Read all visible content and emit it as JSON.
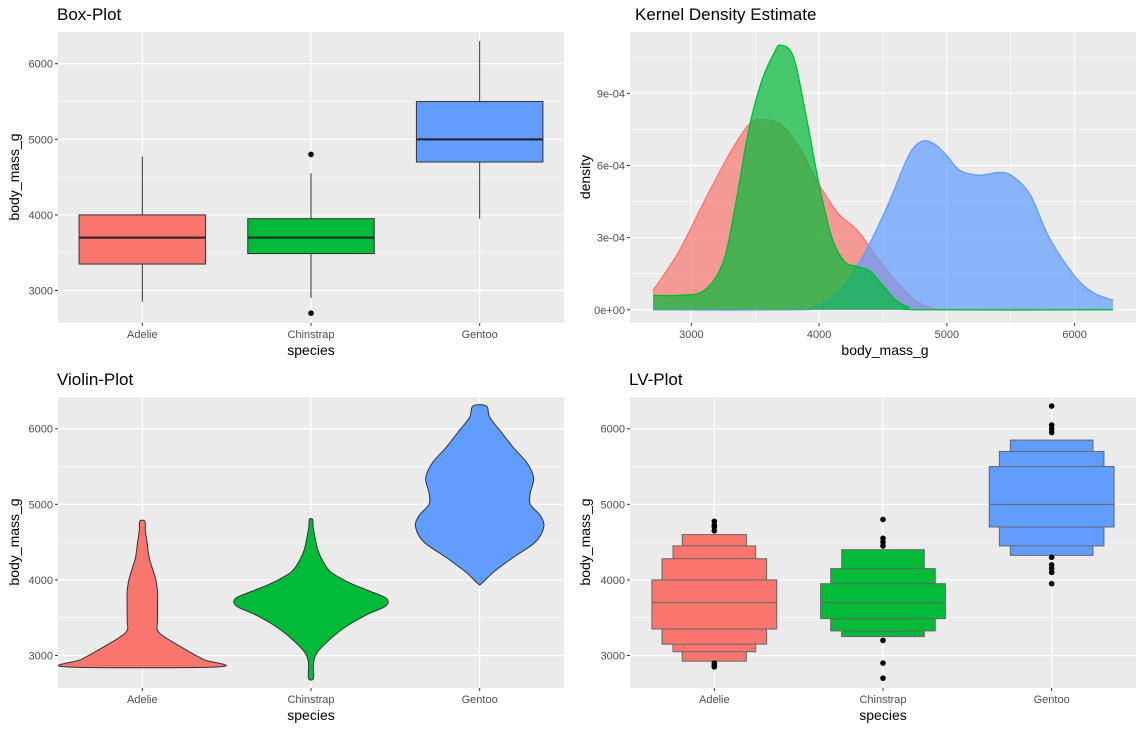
{
  "colors": {
    "panel_bg": "#ebebeb",
    "grid": "#ffffff",
    "Adelie": "#f8766d",
    "Chinstrap": "#00ba38",
    "Gentoo": "#619cff"
  },
  "chart_data": [
    {
      "type": "box",
      "title": "Box-Plot",
      "xlabel": "species",
      "ylabel": "body_mass_g",
      "categories": [
        "Adelie",
        "Chinstrap",
        "Gentoo"
      ],
      "ylim": [
        2570,
        6420
      ],
      "yticks": [
        3000,
        4000,
        5000,
        6000
      ],
      "yticklabels": [
        "3000",
        "4000",
        "5000",
        "6000"
      ],
      "boxes": [
        {
          "name": "Adelie",
          "min": 2850,
          "q1": 3350,
          "median": 3700,
          "q3": 4000,
          "max": 4775,
          "outliers": []
        },
        {
          "name": "Chinstrap",
          "min": 2900,
          "q1": 3488,
          "median": 3700,
          "q3": 3950,
          "max": 4550,
          "outliers": [
            2700,
            4800
          ]
        },
        {
          "name": "Gentoo",
          "min": 3950,
          "q1": 4700,
          "median": 5000,
          "q3": 5500,
          "max": 6300,
          "outliers": []
        }
      ]
    },
    {
      "type": "density",
      "title": "Kernel Density Estimate",
      "xlabel": "body_mass_g",
      "ylabel": "density",
      "xlim": [
        2520,
        6480
      ],
      "ylim": [
        -5.5e-05,
        0.001155
      ],
      "xticks": [
        3000,
        4000,
        5000,
        6000
      ],
      "xticklabels": [
        "3000",
        "4000",
        "5000",
        "6000"
      ],
      "yticks": [
        0,
        0.0003,
        0.0006,
        0.0009
      ],
      "yticklabels": [
        "0e+00",
        "3e-04",
        "6e-04",
        "9e-04"
      ],
      "series": [
        {
          "name": "Adelie",
          "points": [
            [
              2700,
              8e-05
            ],
            [
              2900,
              0.00024
            ],
            [
              3100,
              0.00045
            ],
            [
              3300,
              0.00065
            ],
            [
              3450,
              0.00077
            ],
            [
              3550,
              0.00079
            ],
            [
              3700,
              0.00077
            ],
            [
              3850,
              0.00067
            ],
            [
              4000,
              0.00052
            ],
            [
              4150,
              0.0004
            ],
            [
              4300,
              0.00033
            ],
            [
              4450,
              0.00022
            ],
            [
              4600,
              0.00012
            ],
            [
              4750,
              4e-05
            ],
            [
              4900,
              5e-06
            ],
            [
              5100,
              0
            ],
            [
              6300,
              0
            ]
          ]
        },
        {
          "name": "Gentoo",
          "points": [
            [
              2700,
              0
            ],
            [
              3800,
              0
            ],
            [
              3950,
              1e-05
            ],
            [
              4100,
              5e-05
            ],
            [
              4250,
              0.00014
            ],
            [
              4400,
              0.00028
            ],
            [
              4550,
              0.00045
            ],
            [
              4700,
              0.00064
            ],
            [
              4800,
              0.0007
            ],
            [
              4900,
              0.00069
            ],
            [
              5000,
              0.00064
            ],
            [
              5100,
              0.00058
            ],
            [
              5250,
              0.00056
            ],
            [
              5400,
              0.00057
            ],
            [
              5500,
              0.00056
            ],
            [
              5650,
              0.00048
            ],
            [
              5800,
              0.0003
            ],
            [
              6000,
              0.00014
            ],
            [
              6150,
              7e-05
            ],
            [
              6300,
              4e-05
            ]
          ]
        },
        {
          "name": "Chinstrap",
          "points": [
            [
              2700,
              6e-05
            ],
            [
              2900,
              6e-05
            ],
            [
              3100,
              8e-05
            ],
            [
              3250,
              0.0002
            ],
            [
              3350,
              0.00045
            ],
            [
              3450,
              0.00075
            ],
            [
              3550,
              0.00095
            ],
            [
              3650,
              0.00107
            ],
            [
              3700,
              0.0011
            ],
            [
              3800,
              0.00105
            ],
            [
              3900,
              0.0008
            ],
            [
              4000,
              0.00052
            ],
            [
              4100,
              0.0003
            ],
            [
              4200,
              0.0002
            ],
            [
              4300,
              0.00018
            ],
            [
              4400,
              0.00016
            ],
            [
              4500,
              0.0001
            ],
            [
              4600,
              4e-05
            ],
            [
              4700,
              1e-05
            ],
            [
              4800,
              0
            ],
            [
              6300,
              0
            ]
          ]
        }
      ]
    },
    {
      "type": "violin",
      "title": "Violin-Plot",
      "xlabel": "species",
      "ylabel": "body_mass_g",
      "categories": [
        "Adelie",
        "Chinstrap",
        "Gentoo"
      ],
      "ylim": [
        2570,
        6420
      ],
      "yticks": [
        3000,
        4000,
        5000,
        6000
      ],
      "yticklabels": [
        "3000",
        "4000",
        "5000",
        "6000"
      ],
      "violins": [
        {
          "name": "Adelie",
          "profile": [
            [
              2850,
              0.45
            ],
            [
              2950,
              0.36
            ],
            [
              3100,
              0.24
            ],
            [
              3300,
              0.1
            ],
            [
              3450,
              0.09
            ],
            [
              3550,
              0.09
            ],
            [
              3700,
              0.09
            ],
            [
              3850,
              0.09
            ],
            [
              4000,
              0.08
            ],
            [
              4150,
              0.06
            ],
            [
              4300,
              0.04
            ],
            [
              4500,
              0.028
            ],
            [
              4650,
              0.018
            ],
            [
              4775,
              0.015
            ]
          ]
        },
        {
          "name": "Chinstrap",
          "profile": [
            [
              2700,
              0.015
            ],
            [
              2900,
              0.015
            ],
            [
              3050,
              0.04
            ],
            [
              3250,
              0.13
            ],
            [
              3400,
              0.22
            ],
            [
              3550,
              0.34
            ],
            [
              3650,
              0.44
            ],
            [
              3750,
              0.45
            ],
            [
              3850,
              0.35
            ],
            [
              3950,
              0.24
            ],
            [
              4100,
              0.12
            ],
            [
              4250,
              0.07
            ],
            [
              4400,
              0.04
            ],
            [
              4550,
              0.025
            ],
            [
              4700,
              0.013
            ],
            [
              4800,
              0.01
            ]
          ]
        },
        {
          "name": "Gentoo",
          "profile": [
            [
              3950,
              0.01
            ],
            [
              4100,
              0.08
            ],
            [
              4300,
              0.2
            ],
            [
              4500,
              0.33
            ],
            [
              4700,
              0.38
            ],
            [
              4850,
              0.36
            ],
            [
              5000,
              0.3
            ],
            [
              5150,
              0.3
            ],
            [
              5350,
              0.32
            ],
            [
              5550,
              0.28
            ],
            [
              5750,
              0.2
            ],
            [
              5950,
              0.13
            ],
            [
              6150,
              0.06
            ],
            [
              6300,
              0.04
            ]
          ]
        }
      ]
    },
    {
      "type": "lv",
      "title": "LV-Plot",
      "xlabel": "species",
      "ylabel": "body_mass_g",
      "categories": [
        "Adelie",
        "Chinstrap",
        "Gentoo"
      ],
      "ylim": [
        2570,
        6420
      ],
      "yticks": [
        3000,
        4000,
        5000,
        6000
      ],
      "yticklabels": [
        "3000",
        "4000",
        "5000",
        "6000"
      ],
      "lv": [
        {
          "name": "Adelie",
          "median": 3700,
          "levels": [
            [
              3350,
              4000,
              0.74
            ],
            [
              3150,
              4280,
              0.62
            ],
            [
              3050,
              4450,
              0.49
            ],
            [
              2925,
              4600,
              0.38
            ]
          ],
          "outliers": [
            2850,
            2875,
            2900,
            4650,
            4700,
            4725,
            4775
          ]
        },
        {
          "name": "Chinstrap",
          "median": 3700,
          "levels": [
            [
              3488,
              3950,
              0.74
            ],
            [
              3325,
              4150,
              0.62
            ],
            [
              3250,
              4400,
              0.49
            ]
          ],
          "outliers": [
            2700,
            2900,
            3200,
            4450,
            4500,
            4550,
            4800
          ]
        },
        {
          "name": "Gentoo",
          "median": 5000,
          "levels": [
            [
              4700,
              5500,
              0.74
            ],
            [
              4450,
              5700,
              0.62
            ],
            [
              4325,
              5850,
              0.49
            ]
          ],
          "outliers": [
            3950,
            4100,
            4150,
            4200,
            4300,
            5950,
            6000,
            6050,
            6300
          ]
        }
      ]
    }
  ]
}
